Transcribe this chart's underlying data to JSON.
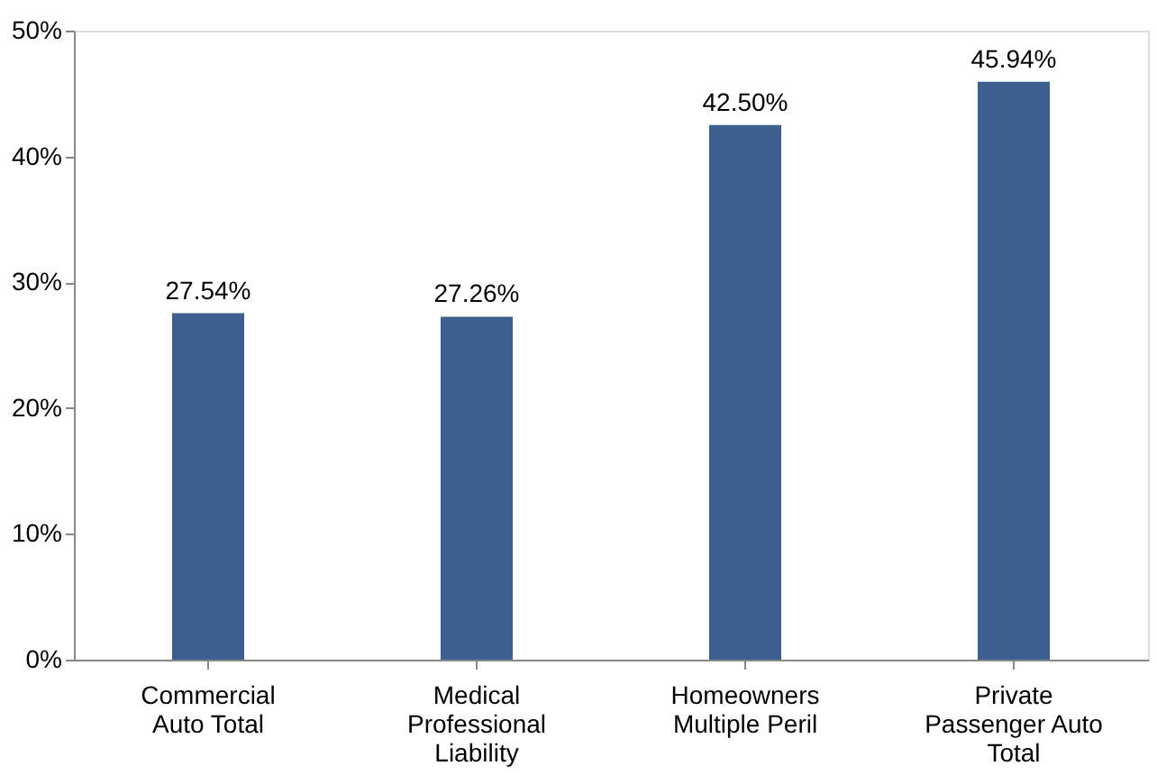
{
  "chart_data": {
    "type": "bar",
    "categories": [
      "Commercial\nAuto Total",
      "Medical\nProfessional\nLiability",
      "Homeowners\nMultiple Peril",
      "Private\nPassenger Auto\nTotal"
    ],
    "values": [
      27.54,
      27.26,
      42.5,
      45.94
    ],
    "value_labels": [
      "27.54%",
      "27.26%",
      "42.50%",
      "45.94%"
    ],
    "color": "#3d5f8f",
    "ylim": [
      0,
      50
    ],
    "yticks": [
      {
        "value": 0,
        "label": "0%"
      },
      {
        "value": 10,
        "label": "10%"
      },
      {
        "value": 20,
        "label": "20%"
      },
      {
        "value": 30,
        "label": "30%"
      },
      {
        "value": 40,
        "label": "40%"
      },
      {
        "value": 50,
        "label": "50%"
      }
    ],
    "grid": false
  }
}
